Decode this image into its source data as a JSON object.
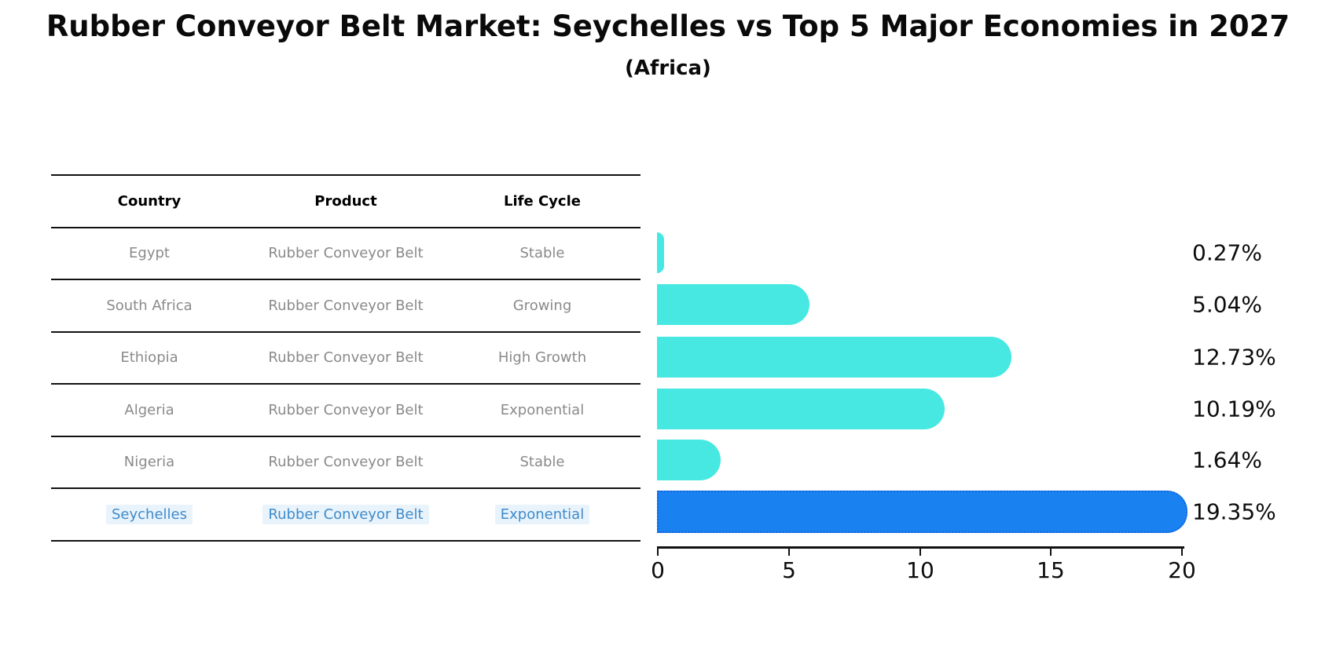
{
  "title": "Rubber Conveyor Belt Market: Seychelles vs Top 5 Major Economies in 2027",
  "subtitle": "(Africa)",
  "table": {
    "headers": {
      "country": "Country",
      "product": "Product",
      "life_cycle": "Life Cycle"
    },
    "rows": [
      {
        "country": "Egypt",
        "product": "Rubber Conveyor Belt",
        "life_cycle": "Stable"
      },
      {
        "country": "South Africa",
        "product": "Rubber Conveyor Belt",
        "life_cycle": "Growing"
      },
      {
        "country": "Ethiopia",
        "product": "Rubber Conveyor Belt",
        "life_cycle": "High Growth"
      },
      {
        "country": "Algeria",
        "product": "Rubber Conveyor Belt",
        "life_cycle": "Exponential"
      },
      {
        "country": "Nigeria",
        "product": "Rubber Conveyor Belt",
        "life_cycle": "Stable"
      },
      {
        "country": "Seychelles",
        "product": "Rubber Conveyor Belt",
        "life_cycle": "Exponential"
      }
    ],
    "highlighted_row": "Seychelles"
  },
  "chart_data": {
    "type": "bar",
    "orientation": "horizontal",
    "title": "Rubber Conveyor Belt Market: Seychelles vs Top 5 Major Economies in 2027 (Africa)",
    "categories": [
      "Egypt",
      "South Africa",
      "Ethiopia",
      "Algeria",
      "Nigeria",
      "Seychelles"
    ],
    "values": [
      0.27,
      5.04,
      12.73,
      10.19,
      1.64,
      19.35
    ],
    "value_labels": [
      "0.27%",
      "5.04%",
      "12.73%",
      "10.19%",
      "1.64%",
      "19.35%"
    ],
    "unit": "%",
    "xlim": [
      0,
      20
    ],
    "xticks": [
      0,
      5,
      10,
      15,
      20
    ],
    "xtick_labels": [
      "0",
      "5",
      "10",
      "15",
      "20"
    ],
    "highlight_index": 5,
    "grid": false,
    "legend": "none"
  },
  "colors": {
    "bar": "#47e8e2",
    "highlight_bar": "#1a82f0",
    "highlight_bar_border": "#1266dd",
    "highlight_text": "#3e8bcc",
    "highlight_text_bg": "#e9f3fb",
    "row_text": "#8a8a8a",
    "header_text": "#000000",
    "axis": "#111111"
  }
}
